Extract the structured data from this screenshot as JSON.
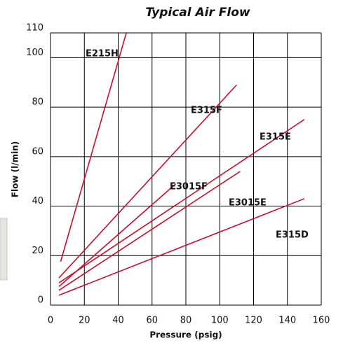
{
  "chart_data": {
    "type": "line",
    "title": "Typical Air Flow",
    "x_label": "Pressure (psig)",
    "y_label": "Flow (l/min)",
    "xlim": [
      0,
      160
    ],
    "xticks": [
      0,
      20,
      40,
      60,
      80,
      100,
      120,
      140,
      160
    ],
    "ylim": [
      0,
      110
    ],
    "yticks": [
      0,
      20,
      40,
      60,
      80,
      100,
      110
    ],
    "grid": true,
    "series": [
      {
        "name": "E215H",
        "color": "#c8102e",
        "x": [
          6,
          44.8
        ],
        "values": [
          17.6,
          110
        ]
      },
      {
        "name": "E315F",
        "color": "#c8102e",
        "x": [
          5,
          110
        ],
        "values": [
          11,
          89
        ]
      },
      {
        "name": "E315E",
        "color": "#c8102e",
        "x": [
          5,
          150
        ],
        "values": [
          9,
          75
        ]
      },
      {
        "name": "E3015F",
        "color": "#c8102e",
        "x": [
          5,
          74
        ],
        "values": [
          7.5,
          49
        ]
      },
      {
        "name": "E3015E",
        "color": "#c8102e",
        "x": [
          5,
          112
        ],
        "values": [
          6,
          54
        ]
      },
      {
        "name": "E315D",
        "color": "#c8102e",
        "x": [
          5,
          150
        ],
        "values": [
          4,
          43
        ]
      }
    ]
  }
}
